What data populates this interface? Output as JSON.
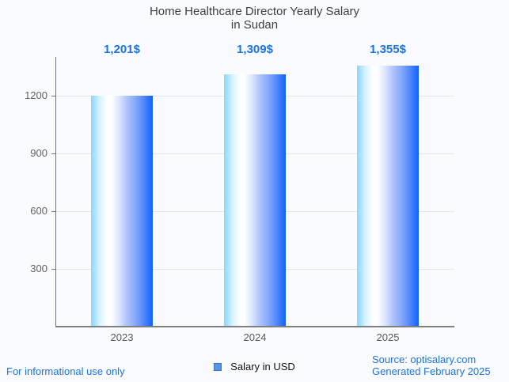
{
  "title": {
    "line1": "Home Healthcare Director Yearly Salary",
    "line2": "in Sudan"
  },
  "chart_data": {
    "type": "bar",
    "title": "Home Healthcare Director Yearly Salary in Sudan",
    "categories": [
      "2023",
      "2024",
      "2025"
    ],
    "series": [
      {
        "name": "Salary in USD",
        "values": [
          1201,
          1309,
          1355
        ]
      }
    ],
    "value_labels": [
      "1,201$",
      "1,309$",
      "1,355$"
    ],
    "xlabel": "",
    "ylabel": "",
    "yticks": [
      300,
      600,
      900,
      1200
    ],
    "ylim": [
      0,
      1400
    ],
    "grid": true,
    "legend_position": "bottom",
    "bar_gradient": [
      "#86d7fb",
      "#ffffff",
      "#0f64fa"
    ]
  },
  "legend": {
    "label": "Salary in USD",
    "swatch_color": "#5795e7"
  },
  "footer": {
    "disclaimer": "For informational use only",
    "source_line1": "Source: optisalary.com",
    "source_line2": "Generated February 2025"
  },
  "colors": {
    "background": "#fafbfe",
    "accent_blue": "#1a73e8",
    "title_text": "#3c4043",
    "axis_line": "#757575",
    "gridline": "#e4e6ea",
    "tick_text": "#616161"
  }
}
